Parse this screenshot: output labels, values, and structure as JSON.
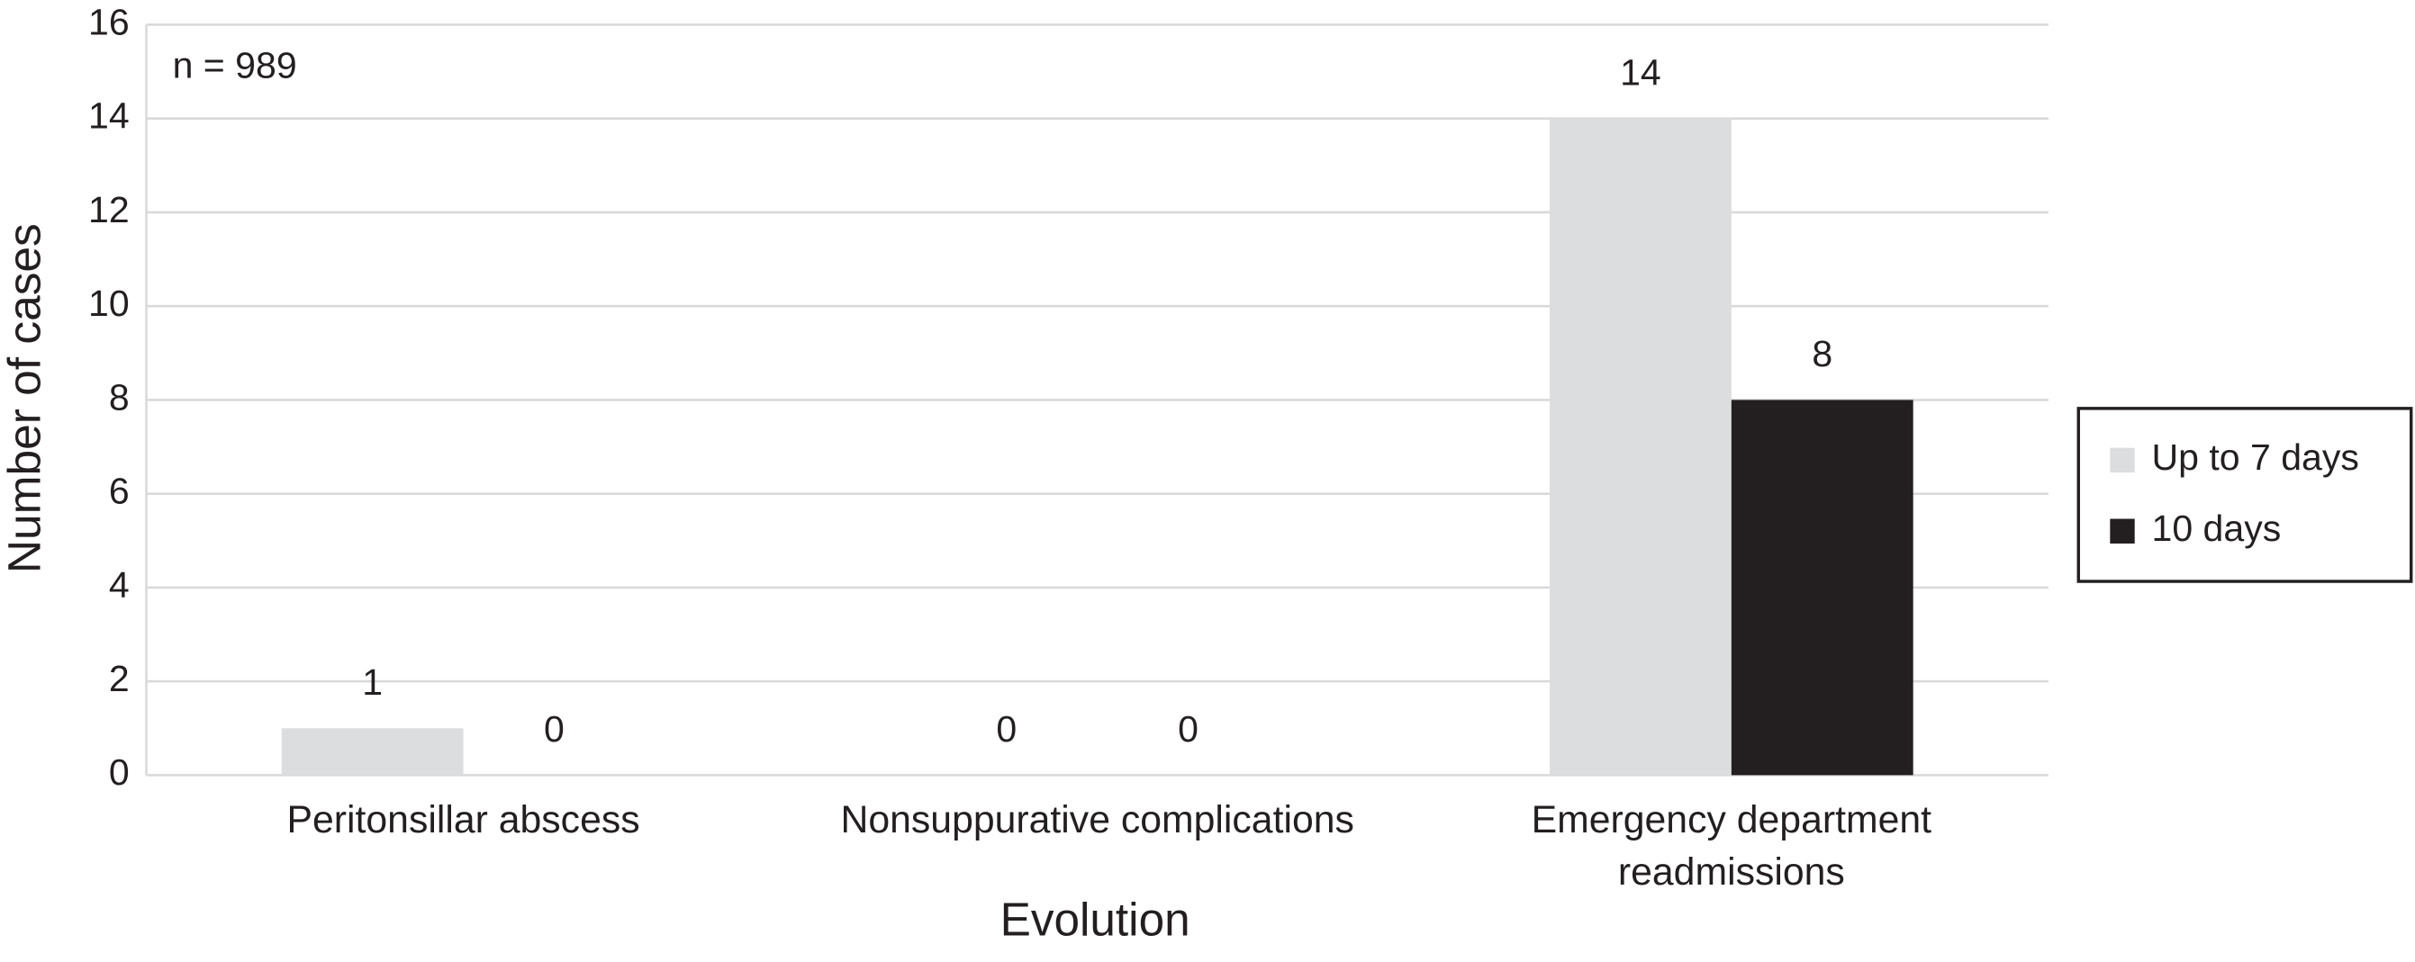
{
  "chart_data": {
    "type": "bar",
    "annotation": "n = 989",
    "x_label": "Evolution",
    "y_label": "Number of cases",
    "categories": [
      "Peritonsillar abscess",
      "Nonsuppurative complications",
      "Emergency department readmissions"
    ],
    "series": [
      {
        "name": "Up to 7 days",
        "color": "#dcddde",
        "values": [
          1,
          0,
          14
        ]
      },
      {
        "name": "10 days",
        "color": "#231f20",
        "values": [
          0,
          0,
          8
        ]
      }
    ],
    "ylim": [
      0,
      16
    ],
    "yticks": [
      0,
      2,
      4,
      6,
      8,
      10,
      12,
      14,
      16
    ],
    "grid": true,
    "legend": "right"
  }
}
